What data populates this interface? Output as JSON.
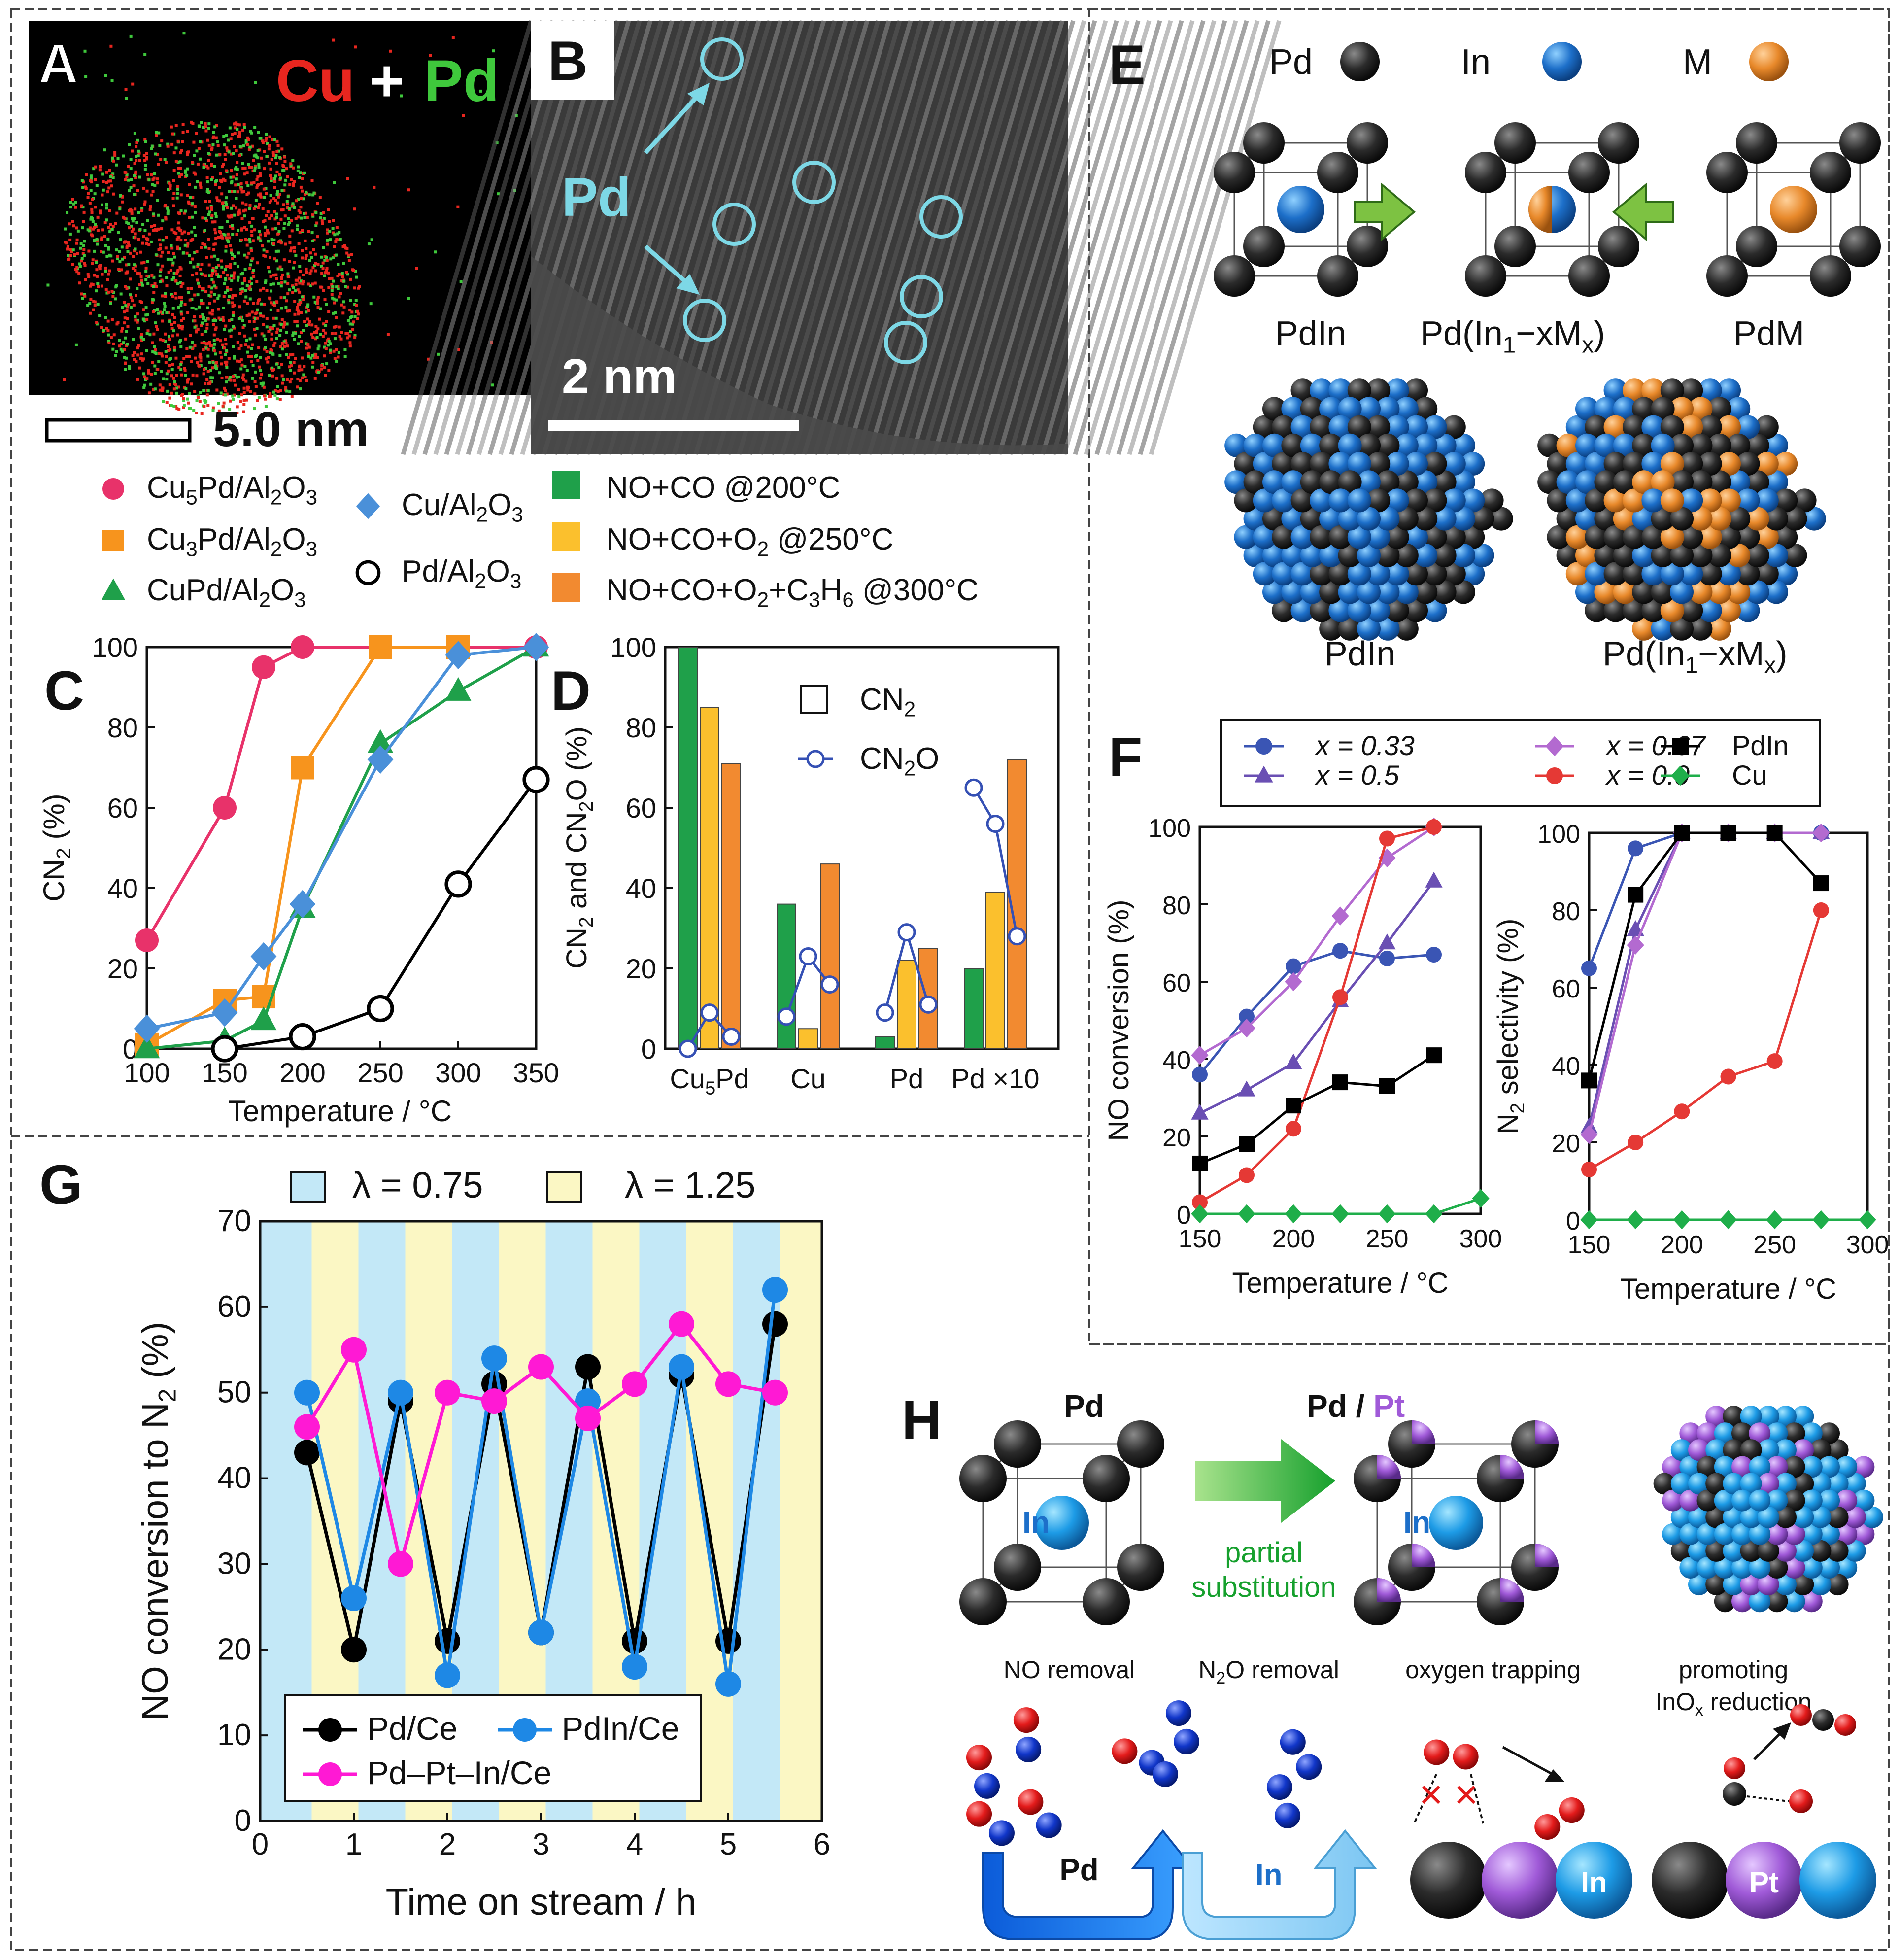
{
  "figure": {
    "panel_labels": {
      "A": "A",
      "B": "B",
      "C": "C",
      "D": "D",
      "E": "E",
      "F": "F",
      "G": "G",
      "H": "H"
    },
    "panel_a": {
      "title_cu": "Cu",
      "title_plus": "+",
      "title_pd": "Pd",
      "scale_bar": "5.0 nm",
      "colors": {
        "cu": "#e8261f",
        "pd": "#3fc83c",
        "bg": "#000000"
      }
    },
    "panel_b": {
      "pd_label": "Pd",
      "scale_bar": "2 nm",
      "circle_color": "#7dd8e6"
    },
    "legend_cd": {
      "series": [
        {
          "name": "Cu5Pd/Al2O3",
          "color": "#e8326a",
          "marker": "circle"
        },
        {
          "name": "Cu3Pd/Al2O3",
          "color": "#f7941d",
          "marker": "square"
        },
        {
          "name": "CuPd/Al2O3",
          "color": "#1fa04a",
          "marker": "triangle"
        },
        {
          "name": "Cu/Al2O3",
          "color": "#4a90d9",
          "marker": "diamond"
        },
        {
          "name": "Pd/Al2O3",
          "color": "#000000",
          "marker": "open-circle"
        }
      ],
      "conditions": [
        {
          "name": "NO+CO @200°C",
          "color": "#1fa04a"
        },
        {
          "name": "NO+CO+O2 @250°C",
          "color": "#fbc02d"
        },
        {
          "name": "NO+CO+O2+C3H6 @300°C",
          "color": "#f28a30"
        }
      ]
    },
    "panel_e": {
      "atoms": [
        {
          "name": "Pd",
          "color": "#2b2b2b"
        },
        {
          "name": "In",
          "color": "#1d6fc9"
        },
        {
          "name": "M",
          "color": "#e8892b"
        }
      ],
      "cells": [
        "PdIn",
        "Pd(In1−xMx)",
        "PdM"
      ],
      "clusters": [
        "PdIn",
        "Pd(In1−xMx)"
      ]
    },
    "panel_h": {
      "top_left": "Pd",
      "top_mid_pd": "Pd",
      "top_mid_slash": " / ",
      "top_mid_pt": "Pt",
      "in_label": "In",
      "arrow_text_1": "partial",
      "arrow_text_2": "substitution",
      "mech_labels": [
        "NO removal",
        "N2O removal",
        "oxygen trapping",
        "promoting",
        "InOx reduction"
      ],
      "arrow_pd": "Pd",
      "arrow_in": "In",
      "ball_in": "In",
      "ball_pt": "Pt",
      "x_marks": "✕ ✕",
      "colors": {
        "pd": "#2b2b2b",
        "in": "#1d8fe0",
        "pt": "#a05ad8",
        "o": "#e31b1b",
        "n": "#1136c9"
      }
    }
  },
  "chart_data": [
    {
      "id": "C",
      "type": "line",
      "xlabel": "Temperature / °C",
      "ylabel": "CN2 (%)",
      "xlim": [
        100,
        350
      ],
      "ylim": [
        0,
        100
      ],
      "xticks": [
        100,
        150,
        200,
        250,
        300,
        350
      ],
      "yticks": [
        0,
        20,
        40,
        60,
        80,
        100
      ],
      "series": [
        {
          "name": "Cu5Pd/Al2O3",
          "color": "#e8326a",
          "marker": "circle",
          "x": [
            100,
            150,
            175,
            200,
            250,
            300,
            350
          ],
          "y": [
            27,
            60,
            95,
            100,
            100,
            100,
            100
          ]
        },
        {
          "name": "Cu3Pd/Al2O3",
          "color": "#f7941d",
          "marker": "square",
          "x": [
            100,
            150,
            175,
            200,
            250,
            300
          ],
          "y": [
            1,
            12,
            13,
            70,
            100,
            100
          ]
        },
        {
          "name": "CuPd/Al2O3",
          "color": "#1fa04a",
          "marker": "triangle",
          "x": [
            100,
            150,
            175,
            200,
            250,
            300,
            350
          ],
          "y": [
            0,
            2,
            7,
            35,
            76,
            89,
            100
          ]
        },
        {
          "name": "Cu/Al2O3",
          "color": "#4a90d9",
          "marker": "diamond",
          "x": [
            100,
            150,
            175,
            200,
            250,
            300,
            350
          ],
          "y": [
            5,
            9,
            23,
            36,
            72,
            98,
            100
          ]
        },
        {
          "name": "Pd/Al2O3",
          "color": "#000000",
          "marker": "open-circle",
          "x": [
            150,
            200,
            250,
            300,
            350
          ],
          "y": [
            0,
            3,
            10,
            41,
            67
          ]
        }
      ]
    },
    {
      "id": "D",
      "type": "bar",
      "ylabel": "CN2 and CN2O (%)",
      "ylim": [
        0,
        100
      ],
      "yticks": [
        0,
        20,
        40,
        60,
        80,
        100
      ],
      "categories": [
        "Cu5Pd",
        "Cu",
        "Pd",
        "Pd ×10"
      ],
      "series": [
        {
          "name": "NO+CO @200°C",
          "color": "#1fa04a",
          "values": [
            100,
            36,
            3,
            20
          ]
        },
        {
          "name": "NO+CO+O2 @250°C",
          "color": "#fbc02d",
          "values": [
            85,
            5,
            22,
            39
          ]
        },
        {
          "name": "NO+CO+O2+C3H6 @300°C",
          "color": "#f28a30",
          "values": [
            71,
            46,
            25,
            72
          ]
        }
      ],
      "n2o": [
        [
          0,
          9,
          3
        ],
        [
          8,
          23,
          16
        ],
        [
          9,
          29,
          11
        ],
        [
          65,
          56,
          28
        ]
      ],
      "legend": [
        "CN2",
        "CN2O"
      ]
    },
    {
      "id": "F-left",
      "type": "line",
      "xlabel": "Temperature / °C",
      "ylabel": "NO conversion (%)",
      "xlim": [
        150,
        300
      ],
      "ylim": [
        0,
        100
      ],
      "xticks": [
        150,
        200,
        250,
        300
      ],
      "yticks": [
        0,
        20,
        40,
        60,
        80,
        100
      ],
      "series": [
        {
          "name": "x = 0.33",
          "color": "#3a55b4",
          "marker": "circle",
          "x": [
            150,
            175,
            200,
            225,
            250,
            275
          ],
          "y": [
            36,
            51,
            64,
            68,
            66,
            67
          ]
        },
        {
          "name": "x = 0.5",
          "color": "#6a4fb3",
          "marker": "triangle",
          "x": [
            150,
            175,
            200,
            225,
            250,
            275
          ],
          "y": [
            26,
            32,
            39,
            55,
            70,
            86
          ]
        },
        {
          "name": "x = 0.67",
          "color": "#b36ad0",
          "marker": "diamond",
          "x": [
            150,
            175,
            200,
            225,
            250,
            275
          ],
          "y": [
            41,
            48,
            60,
            77,
            92,
            100
          ]
        },
        {
          "name": "x = 0.9",
          "color": "#e53935",
          "marker": "circle",
          "x": [
            150,
            175,
            200,
            225,
            250,
            275
          ],
          "y": [
            3,
            10,
            22,
            56,
            97,
            100
          ]
        },
        {
          "name": "PdIn",
          "color": "#000000",
          "marker": "square",
          "x": [
            150,
            175,
            200,
            225,
            250,
            275
          ],
          "y": [
            13,
            18,
            28,
            34,
            33,
            41
          ]
        },
        {
          "name": "Cu",
          "color": "#1fae4a",
          "marker": "diamond",
          "x": [
            150,
            175,
            200,
            225,
            250,
            275,
            300
          ],
          "y": [
            0,
            0,
            0,
            0,
            0,
            0,
            4
          ]
        }
      ]
    },
    {
      "id": "F-right",
      "type": "line",
      "xlabel": "Temperature / °C",
      "ylabel": "N2 selectivity (%)",
      "xlim": [
        150,
        300
      ],
      "ylim": [
        0,
        100
      ],
      "xticks": [
        150,
        200,
        250,
        300
      ],
      "yticks": [
        0,
        20,
        40,
        60,
        80,
        100
      ],
      "series": [
        {
          "name": "x = 0.33",
          "color": "#3a55b4",
          "marker": "circle",
          "x": [
            150,
            175,
            200,
            225,
            250,
            275
          ],
          "y": [
            65,
            96,
            100,
            100,
            100,
            100
          ]
        },
        {
          "name": "x = 0.5",
          "color": "#6a4fb3",
          "marker": "triangle",
          "x": [
            150,
            175,
            200,
            225,
            250,
            275
          ],
          "y": [
            24,
            75,
            100,
            100,
            100,
            100
          ]
        },
        {
          "name": "x = 0.67",
          "color": "#b36ad0",
          "marker": "diamond",
          "x": [
            150,
            175,
            200,
            225,
            250,
            275
          ],
          "y": [
            22,
            71,
            100,
            100,
            100,
            100
          ]
        },
        {
          "name": "x = 0.9",
          "color": "#e53935",
          "marker": "circle",
          "x": [
            150,
            175,
            200,
            225,
            250,
            275
          ],
          "y": [
            13,
            20,
            28,
            37,
            41,
            80
          ]
        },
        {
          "name": "PdIn",
          "color": "#000000",
          "marker": "square",
          "x": [
            150,
            175,
            200,
            225,
            250,
            275
          ],
          "y": [
            36,
            84,
            100,
            100,
            100,
            87
          ]
        },
        {
          "name": "Cu",
          "color": "#1fae4a",
          "marker": "diamond",
          "x": [
            150,
            175,
            200,
            225,
            250,
            275,
            300
          ],
          "y": [
            0,
            0,
            0,
            0,
            0,
            0,
            0
          ]
        }
      ]
    },
    {
      "id": "G",
      "type": "line",
      "xlabel": "Time on stream / h",
      "ylabel": "NO conversion to N2 (%)",
      "xlim": [
        0,
        6
      ],
      "ylim": [
        0,
        70
      ],
      "xticks": [
        0,
        1,
        2,
        3,
        4,
        5,
        6
      ],
      "yticks": [
        0,
        10,
        20,
        30,
        40,
        50,
        60,
        70
      ],
      "bands": [
        {
          "name": "λ = 0.75",
          "color": "#c3e8f7"
        },
        {
          "name": "λ = 1.25",
          "color": "#fbf7c4"
        }
      ],
      "series": [
        {
          "name": "Pd/Ce",
          "color": "#000000",
          "x": [
            0.5,
            1,
            1.5,
            2,
            2.5,
            3,
            3.5,
            4,
            4.5,
            5,
            5.5
          ],
          "y": [
            43,
            20,
            49,
            21,
            51,
            22,
            53,
            21,
            52,
            21,
            58
          ]
        },
        {
          "name": "PdIn/Ce",
          "color": "#1e88e5",
          "x": [
            0.5,
            1,
            1.5,
            2,
            2.5,
            3,
            3.5,
            4,
            4.5,
            5,
            5.5
          ],
          "y": [
            50,
            26,
            50,
            17,
            54,
            22,
            49,
            18,
            53,
            16,
            62
          ]
        },
        {
          "name": "Pd–Pt–In/Ce",
          "color": "#ff19d4",
          "x": [
            0.5,
            1,
            1.5,
            2,
            2.5,
            3,
            3.5,
            4,
            4.5,
            5,
            5.5
          ],
          "y": [
            46,
            55,
            30,
            50,
            49,
            53,
            47,
            51,
            58,
            51,
            50
          ]
        }
      ]
    }
  ]
}
